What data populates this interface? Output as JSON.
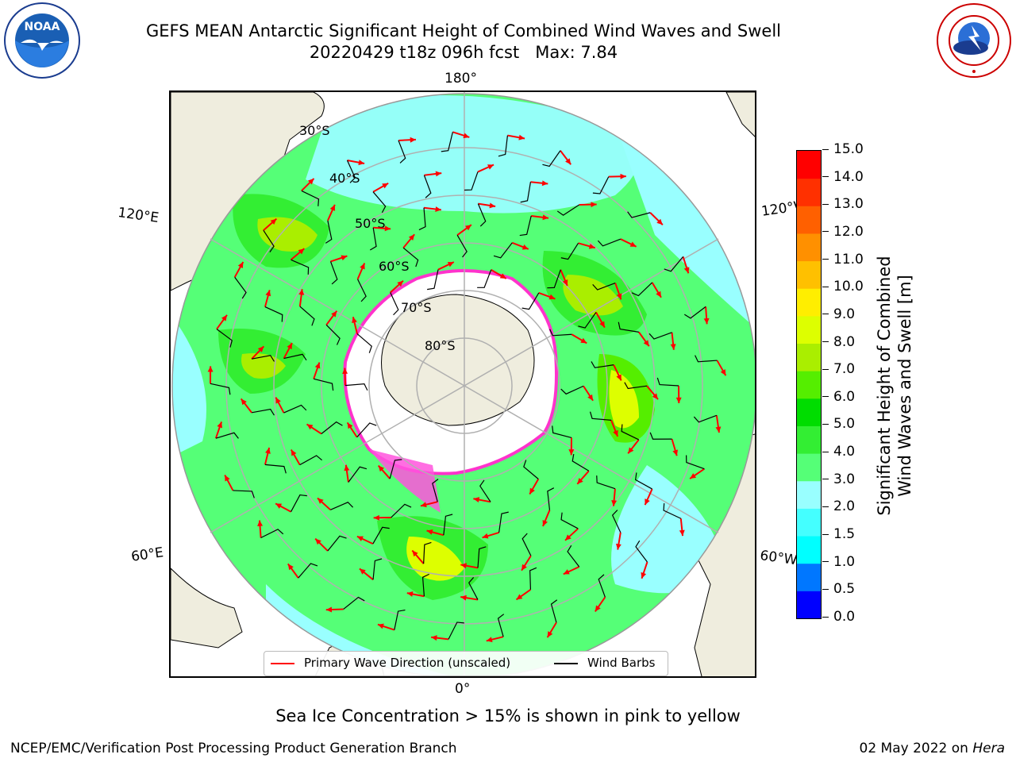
{
  "header": {
    "title_line1": "GEFS MEAN Antarctic Significant Height of Combined Wind Waves and Swell",
    "title_line2": "20220429 t18z 096h fcst   Max: 7.84"
  },
  "logos": {
    "left": {
      "name": "NOAA",
      "text": "NOAA"
    },
    "right": {
      "name": "National Weather Service",
      "text": "NATIONAL WEATHER SERVICE"
    }
  },
  "map": {
    "projection": "south-polar-stereographic",
    "longitude_labels": {
      "top": "180°",
      "bottom": "0°",
      "upper_left": "120°E",
      "upper_right": "120°W",
      "lower_left": "60°E",
      "lower_right": "60°W"
    },
    "latitude_labels": [
      "30°S",
      "40°S",
      "50°S",
      "60°S",
      "70°S",
      "80°S"
    ],
    "colors": {
      "land": "#efedde",
      "antarctic_ice": "#ffffff",
      "grid": "#b0b0b0",
      "arrow": "#ff0000",
      "barb": "#000000"
    }
  },
  "legend": {
    "items": [
      {
        "label": "Primary Wave Direction (unscaled)",
        "color": "#ff0000"
      },
      {
        "label": "Wind Barbs",
        "color": "#000000"
      }
    ]
  },
  "colorbar": {
    "title_line1": "Significant Height of Combined",
    "title_line2": "Wind Waves and Swell [m]",
    "ticks": [
      "0.0",
      "0.5",
      "1.0",
      "1.5",
      "2.0",
      "3.0",
      "4.0",
      "5.0",
      "6.0",
      "7.0",
      "8.0",
      "9.0",
      "10.0",
      "11.0",
      "12.0",
      "13.0",
      "14.0",
      "15.0"
    ],
    "colors": [
      "#0000ff",
      "#0077ff",
      "#00ffff",
      "#44ffff",
      "#99ffff",
      "#55ff77",
      "#33ee33",
      "#00dd00",
      "#55ee00",
      "#aaee00",
      "#ddff00",
      "#ffee00",
      "#ffc000",
      "#ff9000",
      "#ff6000",
      "#ff3000",
      "#ff0000"
    ]
  },
  "notes": {
    "sea_ice": "Sea Ice Concentration > 15% is shown in pink to yellow"
  },
  "footer": {
    "left": "NCEP/EMC/Verification Post Processing Product Generation Branch",
    "right_date": "02 May 2022 on ",
    "right_host": "Hera"
  },
  "chart_data": {
    "type": "heatmap",
    "variable": "Significant Height of Combined Wind Waves and Swell",
    "units": "m",
    "max_value": 7.84,
    "colorbar_range": [
      0,
      15
    ],
    "legend_placement": "bottom-center"
  }
}
